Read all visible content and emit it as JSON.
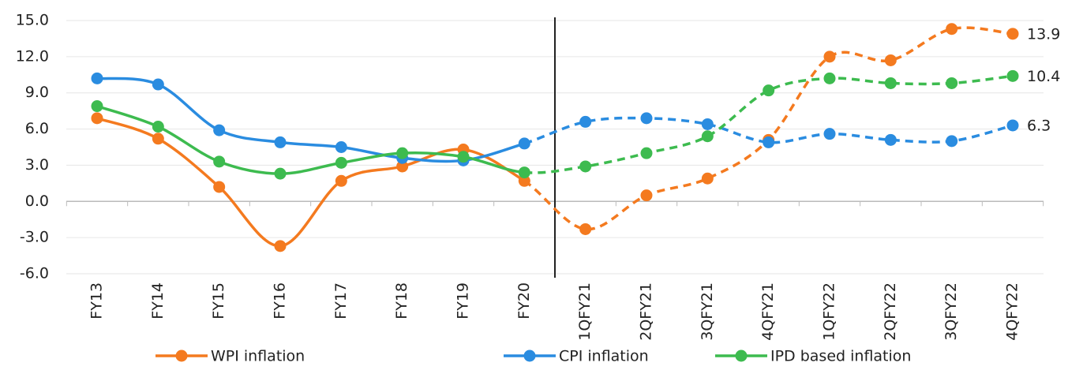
{
  "chart_data": {
    "type": "line",
    "categories": [
      "FY13",
      "FY14",
      "FY15",
      "FY16",
      "FY17",
      "FY18",
      "FY19",
      "FY20",
      "1QFY21",
      "2QFY21",
      "3QFY21",
      "4QFY21",
      "1QFY22",
      "2QFY22",
      "3QFY22",
      "4QFY22"
    ],
    "series": [
      {
        "name": "WPI inflation",
        "color": "#f47a1f",
        "values": [
          6.9,
          5.2,
          1.2,
          -3.7,
          1.7,
          2.9,
          4.3,
          1.7,
          -2.3,
          0.5,
          1.9,
          5.1,
          12.0,
          11.7,
          14.3,
          13.9
        ]
      },
      {
        "name": "CPI inflation",
        "color": "#2a8ce0",
        "values": [
          10.2,
          9.7,
          5.9,
          4.9,
          4.5,
          3.6,
          3.4,
          4.8,
          6.6,
          6.9,
          6.4,
          4.9,
          5.6,
          5.1,
          5.0,
          6.3
        ]
      },
      {
        "name": "IPD based inflation",
        "color": "#3dbb4f",
        "values": [
          7.9,
          6.2,
          3.3,
          2.3,
          3.2,
          4.0,
          3.7,
          2.4,
          2.9,
          4.0,
          5.4,
          9.2,
          10.2,
          9.8,
          9.8,
          10.4
        ]
      }
    ],
    "ylim": [
      -6,
      15
    ],
    "yticks": [
      {
        "value": -6,
        "label": "-6.0"
      },
      {
        "value": -3,
        "label": "-3.0"
      },
      {
        "value": 0,
        "label": "0.0"
      },
      {
        "value": 3,
        "label": "3.0"
      },
      {
        "value": 6,
        "label": "6.0"
      },
      {
        "value": 9,
        "label": "9.0"
      },
      {
        "value": 12,
        "label": "12.0"
      },
      {
        "value": 15,
        "label": "15.0"
      }
    ],
    "grid": true,
    "dashed_from": "FY20",
    "legend": "bottom"
  }
}
